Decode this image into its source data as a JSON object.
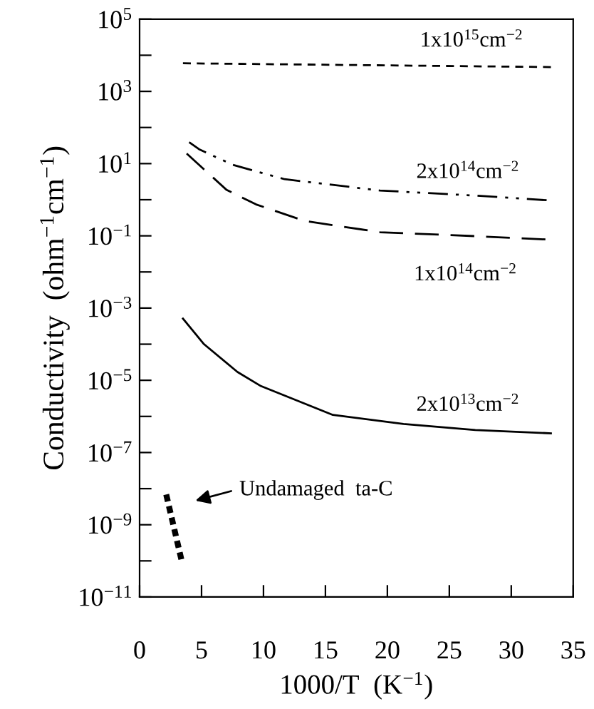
{
  "chart_data": {
    "type": "line",
    "xlabel": "1000/T  (K$^{−1}$)",
    "ylabel": "Conductivity  (ohm$^{−1}$cm$^{−1}$)",
    "log": "y",
    "xlim": [
      0,
      35
    ],
    "ylim": [
      1e-11,
      100000.0
    ],
    "xticks": [
      0,
      5,
      10,
      15,
      20,
      25,
      30,
      35
    ],
    "yticks": [
      {
        "value": 1e-11,
        "label": "10$^{−11}$"
      },
      {
        "value": 1e-10,
        "label": null
      },
      {
        "value": 1e-09,
        "label": "10$^{−9}$"
      },
      {
        "value": 1e-08,
        "label": null
      },
      {
        "value": 1e-07,
        "label": "10$^{−7}$"
      },
      {
        "value": 1e-06,
        "label": null
      },
      {
        "value": 1e-05,
        "label": "10$^{−5}$"
      },
      {
        "value": 0.0001,
        "label": null
      },
      {
        "value": 0.001,
        "label": "10$^{−3}$"
      },
      {
        "value": 0.01,
        "label": null
      },
      {
        "value": 0.1,
        "label": "10$^{−1}$"
      },
      {
        "value": 1,
        "label": null
      },
      {
        "value": 10,
        "label": "10$^{1}$"
      },
      {
        "value": 100,
        "label": null
      },
      {
        "value": 1000,
        "label": "10$^{3}$"
      },
      {
        "value": 10000,
        "label": null
      },
      {
        "value": 100000,
        "label": "10$^{5}$"
      }
    ],
    "grid": false,
    "legend": false,
    "marker": "none",
    "series": [
      {
        "name": "1x10$^{15}$cm$^{−2}$",
        "color": "#000000",
        "line_style": "dashed",
        "x": [
          3.5,
          33.5
        ],
        "values": [
          6000,
          4700
        ]
      },
      {
        "name": "2x10$^{14}$cm$^{−2}$",
        "color": "#000000",
        "line_style": "dashdotdot",
        "x": [
          4.0,
          4.8,
          7.5,
          11.7,
          19.4,
          27.1,
          33.2
        ],
        "values": [
          39,
          25,
          9.3,
          3.7,
          1.8,
          1.3,
          0.95
        ]
      },
      {
        "name": "1x10$^{14}$cm$^{−2}$",
        "color": "#000000",
        "line_style": "longdash",
        "x": [
          3.8,
          7.0,
          9.4,
          13.3,
          19.4,
          27.1,
          33.0
        ],
        "values": [
          19,
          1.9,
          0.74,
          0.26,
          0.126,
          0.098,
          0.079
        ]
      },
      {
        "name": "2x10$^{13}$cm$^{−2}$",
        "color": "#000000",
        "line_style": "solid",
        "x": [
          3.5,
          5.2,
          7.9,
          9.8,
          15.6,
          21.3,
          27.1,
          33.2
        ],
        "values": [
          0.00051,
          0.0001,
          1.7e-05,
          6.9e-06,
          1.1e-06,
          6.2e-07,
          4.2e-07,
          3.4e-07
        ]
      },
      {
        "color": "#000000",
        "line_style": "dotted",
        "x": [
          2.15,
          3.37
        ],
        "values": [
          6.9e-09,
          1.1e-10
        ]
      }
    ],
    "annotations": [
      "Undamaged  ta-C"
    ]
  }
}
